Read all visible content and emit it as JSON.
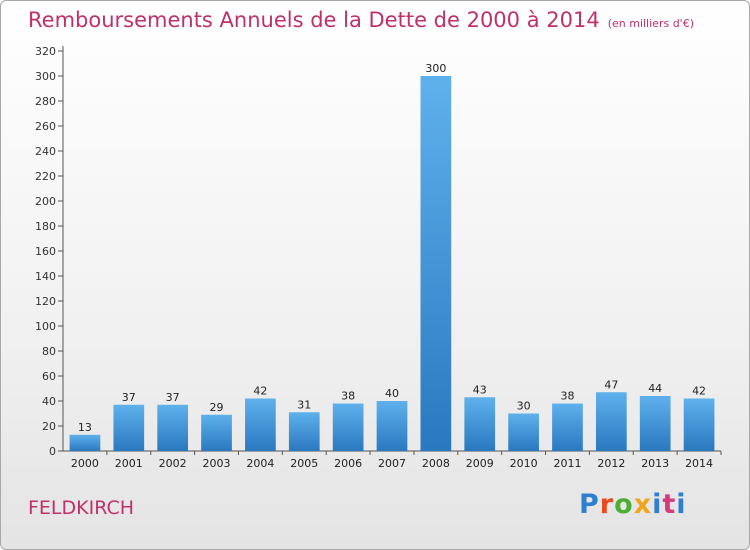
{
  "chart_data": {
    "type": "bar",
    "title": "Remboursements Annuels de la Dette de 2000 à 2014",
    "subtitle": "(en milliers d'€)",
    "categories": [
      "2000",
      "2001",
      "2002",
      "2003",
      "2004",
      "2005",
      "2006",
      "2007",
      "2008",
      "2009",
      "2010",
      "2011",
      "2012",
      "2013",
      "2014"
    ],
    "values": [
      13,
      37,
      37,
      29,
      42,
      31,
      38,
      40,
      300,
      43,
      30,
      38,
      47,
      44,
      42
    ],
    "ylim": [
      0,
      320
    ],
    "yticks": [
      0,
      20,
      40,
      60,
      80,
      100,
      120,
      140,
      160,
      180,
      200,
      220,
      240,
      260,
      280,
      300,
      320
    ],
    "grid": false,
    "legend": "none",
    "bar_color": "#3a8fd6"
  },
  "footer": {
    "commune": "FELDKIRCH",
    "logo": "Proxiti",
    "logo_colors": [
      "#2f7fd1",
      "#e84a1c",
      "#4caf33",
      "#f0a61a",
      "#2f7fd1",
      "#d63a7a",
      "#2f7fd1"
    ]
  }
}
